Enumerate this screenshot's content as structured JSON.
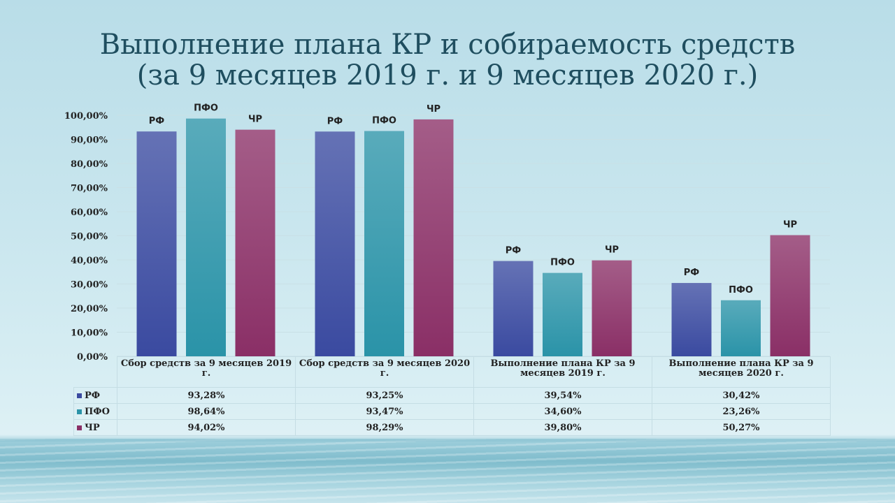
{
  "title": {
    "line1": "Выполнение плана КР и собираемость  средств",
    "line2": "(за 9 месяцев 2019 г. и 9 месяцев 2020 г.)"
  },
  "chart_data": {
    "type": "bar",
    "categories": [
      "Сбор средств за 9 месяцев 2019 г.",
      "Сбор средств за 9 месяцев 2020 г.",
      "Выполнение  плана КР за 9 месяцев 2019 г.",
      "Выполнение  плана КР за 9 месяцев 2020 г."
    ],
    "series": [
      {
        "name": "РФ",
        "values": [
          93.28,
          93.25,
          39.54,
          30.42
        ],
        "labels": [
          "93,28%",
          "93,25%",
          "39,54%",
          "30,42%"
        ],
        "color": "#3a4aa0"
      },
      {
        "name": "ПФО",
        "values": [
          98.64,
          93.47,
          34.6,
          23.26
        ],
        "labels": [
          "98,64%",
          "93,47%",
          "34,60%",
          "23,26%"
        ],
        "color": "#2a93a8"
      },
      {
        "name": "ЧР",
        "values": [
          94.02,
          98.29,
          39.8,
          50.27
        ],
        "labels": [
          "94,02%",
          "98,29%",
          "39,80%",
          "50,27%"
        ],
        "color": "#8a2f66"
      }
    ],
    "ylim": [
      0,
      100
    ],
    "yticks": [
      "0,00%",
      "10,00%",
      "20,00%",
      "30,00%",
      "40,00%",
      "50,00%",
      "60,00%",
      "70,00%",
      "80,00%",
      "90,00%",
      "100,00%"
    ],
    "grid": true,
    "legend": "data-table"
  }
}
